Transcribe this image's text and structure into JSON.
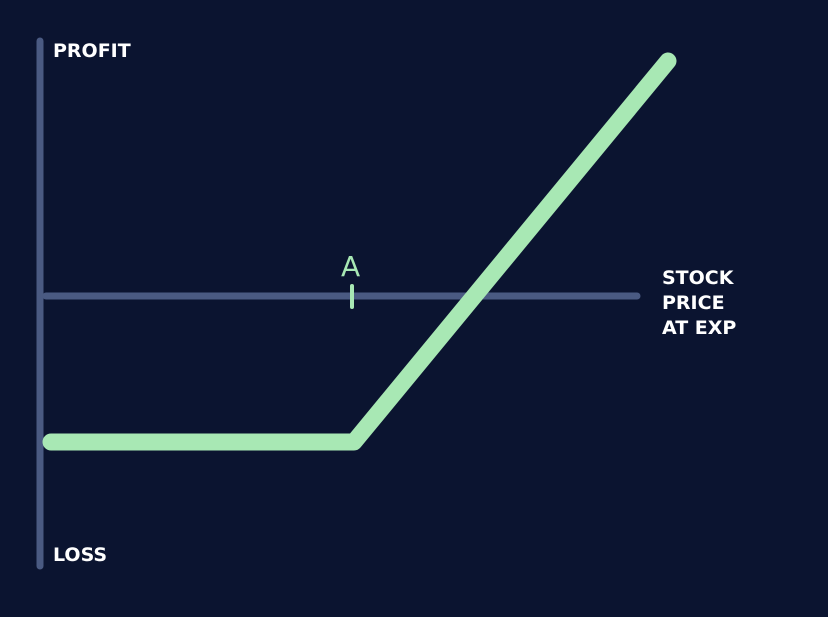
{
  "y_axis": {
    "top_label": "PROFIT",
    "bottom_label": "LOSS"
  },
  "x_axis": {
    "label_lines": [
      "STOCK",
      "PRICE",
      "AT EXP"
    ]
  },
  "strike_marker": {
    "label": "A"
  },
  "colors": {
    "background": "#0b1430",
    "axis": "#4a5a82",
    "payoff": "#a8e8b4",
    "text": "#ffffff"
  }
}
